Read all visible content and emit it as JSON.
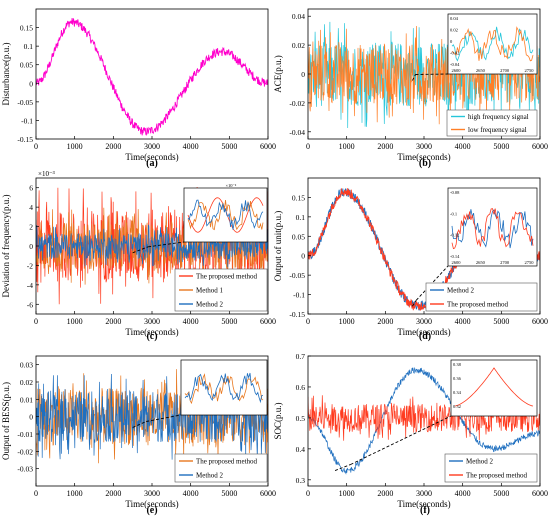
{
  "figure": {
    "panels": [
      "(a)",
      "(b)",
      "(c)",
      "(d)",
      "(e)",
      "(f)"
    ]
  },
  "chart_data": [
    {
      "id": "a",
      "type": "line",
      "xlabel": "Time(seconds)",
      "ylabel": "Disturbance(p.u.)",
      "xlim": [
        0,
        6000
      ],
      "ylim": [
        -0.15,
        0.2
      ],
      "xticks": [
        "0",
        "1000",
        "2000",
        "3000",
        "4000",
        "5000",
        "6000"
      ],
      "yticks": [
        "-0.15",
        "-0.1",
        "-0.05",
        "0",
        "0.05",
        "0.1",
        "0.15"
      ],
      "series": [
        {
          "color": "#ff00cc",
          "shape": "sine",
          "x": [
            0,
            930,
            2830,
            4800,
            6000
          ],
          "y": [
            0.0,
            0.165,
            -0.13,
            0.085,
            0.0
          ],
          "noise": 0.012
        }
      ]
    },
    {
      "id": "b",
      "type": "line",
      "xlabel": "Time(seconds)",
      "ylabel": "ACE(p.u.)",
      "xlim": [
        0,
        6000
      ],
      "ylim": [
        -0.045,
        0.045
      ],
      "xticks": [
        "0",
        "1000",
        "2000",
        "3000",
        "4000",
        "5000",
        "6000"
      ],
      "yticks": [
        "-0.04",
        "-0.02",
        "0",
        "0.02",
        "0.04"
      ],
      "legend_position": "bottom-right",
      "inset": {
        "xlim": [
          2550,
          2800
        ],
        "ylim": [
          -0.05,
          0.05
        ],
        "xticks": [
          "2600",
          "2650",
          "2700",
          "2750"
        ],
        "yticks": [
          "-0.04",
          "-0.02",
          "0",
          "0.02",
          "0.04"
        ],
        "source_x": [
          2700,
          2780
        ]
      },
      "series": [
        {
          "name": "high frequency signal",
          "color": "#26c6da",
          "amplitude": 0.03
        },
        {
          "name": "low frequency signal",
          "color": "#ff7f27",
          "amplitude": 0.028
        }
      ]
    },
    {
      "id": "c",
      "type": "line",
      "xlabel": "Time(seconds)",
      "ylabel": "Deviation of frequency(p.u.)",
      "multiplier": "×10⁻³",
      "xlim": [
        0,
        6000
      ],
      "ylim": [
        -7,
        7
      ],
      "xticks": [
        "0",
        "1000",
        "2000",
        "3000",
        "4000",
        "5000",
        "6000"
      ],
      "yticks": [
        "-6",
        "-4",
        "-2",
        "0",
        "2",
        "4",
        "6"
      ],
      "legend_position": "bottom-right",
      "inset": {
        "xlim": [
          2650,
          2850
        ],
        "ylim": [
          -2,
          2
        ],
        "multiplier": "×10⁻³",
        "source_x": [
          2500,
          2900
        ]
      },
      "series": [
        {
          "name": "The proposed method",
          "color": "#ff3b1f",
          "amplitude": 5.0
        },
        {
          "name": "Method 1",
          "color": "#e8781f",
          "amplitude": 3.2
        },
        {
          "name": "Method 2",
          "color": "#1f6fbf",
          "amplitude": 1.8
        }
      ]
    },
    {
      "id": "d",
      "type": "line",
      "xlabel": "Time(seconds)",
      "ylabel": "Output of unit(p.u.)",
      "xlim": [
        0,
        6000
      ],
      "ylim": [
        -0.15,
        0.2
      ],
      "xticks": [
        "0",
        "1000",
        "2000",
        "3000",
        "4000",
        "5000",
        "6000"
      ],
      "yticks": [
        "-0.15",
        "-0.1",
        "-0.05",
        "0",
        "0.05",
        "0.1",
        "0.15"
      ],
      "legend_position": "bottom-right",
      "inset": {
        "xlim": [
          2550,
          2800
        ],
        "ylim": [
          -0.15,
          -0.07
        ],
        "xticks": [
          "2600",
          "2650",
          "2700",
          "2750"
        ],
        "yticks": [
          "-0.14",
          "-0.12",
          "-0.1",
          "-0.08"
        ],
        "source_x": [
          2700,
          2800
        ]
      },
      "series": [
        {
          "name": "Method 2",
          "color": "#1f6fbf",
          "shape": "sine"
        },
        {
          "name": "The proposed method",
          "color": "#ff3b1f",
          "shape": "sine"
        }
      ]
    },
    {
      "id": "e",
      "type": "line",
      "xlabel": "Time(seconds)",
      "ylabel": "Output of BESS(p.u.)",
      "xlim": [
        0,
        6000
      ],
      "ylim": [
        -0.04,
        0.035
      ],
      "xticks": [
        "0",
        "1000",
        "2000",
        "3000",
        "4000",
        "5000",
        "6000"
      ],
      "yticks": [
        "-0.03",
        "-0.02",
        "-0.01",
        "0",
        "0.01",
        "0.02",
        "0.03"
      ],
      "legend_position": "bottom-right",
      "inset": {
        "xlim": [
          2650,
          2800
        ],
        "ylim": [
          -0.03,
          0.03
        ],
        "source_x": [
          2500,
          2850
        ]
      },
      "series": [
        {
          "name": "The proposed method",
          "color": "#e8781f",
          "amplitude": 0.022
        },
        {
          "name": "Method 2",
          "color": "#1f6fbf",
          "amplitude": 0.02
        }
      ]
    },
    {
      "id": "f",
      "type": "line",
      "xlabel": "Time(seconds)",
      "ylabel": "SOC(p.u.)",
      "xlim": [
        0,
        6000
      ],
      "ylim": [
        0.28,
        0.7
      ],
      "xticks": [
        "0",
        "1000",
        "2000",
        "3000",
        "4000",
        "5000",
        "6000"
      ],
      "yticks": [
        "0.3",
        "0.4",
        "0.5",
        "0.6",
        "0.7"
      ],
      "legend_position": "bottom-right",
      "inset": {
        "xlim": [
          0,
          2000
        ],
        "ylim": [
          0.32,
          0.4
        ],
        "yticks": [
          "0.32",
          "0.34",
          "0.36",
          "0.38"
        ],
        "source_x": [
          700,
          1100
        ]
      },
      "series": [
        {
          "name": "Method 2",
          "color": "#1f6fbf",
          "x": [
            0,
            1000,
            2800,
            4800,
            6000
          ],
          "y": [
            0.5,
            0.33,
            0.655,
            0.4,
            0.45
          ]
        },
        {
          "name": "The proposed method",
          "color": "#ff3b1f",
          "amplitude": 0.06
        }
      ]
    }
  ]
}
